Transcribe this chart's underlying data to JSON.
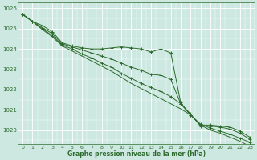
{
  "x": [
    0,
    1,
    2,
    3,
    4,
    5,
    6,
    7,
    8,
    9,
    10,
    11,
    12,
    13,
    14,
    15,
    16,
    17,
    18,
    19,
    20,
    21,
    22,
    23
  ],
  "line1": [
    1025.7,
    1025.35,
    1025.15,
    1024.85,
    1024.3,
    1024.15,
    1024.05,
    1024.0,
    1024.0,
    1024.05,
    1024.1,
    1024.05,
    1024.0,
    1023.85,
    1024.0,
    1023.8,
    1021.35,
    1020.75,
    1020.25,
    1020.25,
    1020.2,
    1020.15,
    1019.95,
    1019.65
  ],
  "line2": [
    1025.7,
    1025.35,
    1025.05,
    1024.75,
    1024.25,
    1024.1,
    1023.95,
    1023.8,
    1023.65,
    1023.5,
    1023.3,
    1023.1,
    1022.95,
    1022.75,
    1022.7,
    1022.5,
    1021.3,
    1020.8,
    1020.2,
    1020.2,
    1020.15,
    1020.05,
    1019.85,
    1019.55
  ],
  "line3": [
    1025.7,
    1025.35,
    1025.0,
    1024.65,
    1024.2,
    1024.0,
    1023.75,
    1023.55,
    1023.3,
    1023.1,
    1022.8,
    1022.55,
    1022.3,
    1022.1,
    1021.9,
    1021.65,
    1021.3,
    1020.75,
    1020.3,
    1020.1,
    1019.95,
    1019.8,
    1019.6,
    1019.4
  ],
  "line4": [
    1025.7,
    1025.35,
    1024.95,
    1024.6,
    1024.15,
    1023.9,
    1023.65,
    1023.4,
    1023.15,
    1022.9,
    1022.6,
    1022.3,
    1022.05,
    1021.8,
    1021.55,
    1021.3,
    1021.05,
    1020.75,
    1020.25,
    1020.0,
    1019.85,
    1019.65,
    1019.45,
    1019.2
  ],
  "bg_color": "#cce8e0",
  "grid_color": "#ffffff",
  "line_color": "#2d6a2d",
  "xlabel": "Graphe pression niveau de la mer (hPa)",
  "ylim_min": 1019.3,
  "ylim_max": 1026.3,
  "yticks": [
    1020,
    1021,
    1022,
    1023,
    1024,
    1025,
    1026
  ],
  "xticks": [
    0,
    1,
    2,
    3,
    4,
    5,
    6,
    7,
    8,
    9,
    10,
    11,
    12,
    13,
    14,
    15,
    16,
    17,
    18,
    19,
    20,
    21,
    22,
    23
  ]
}
